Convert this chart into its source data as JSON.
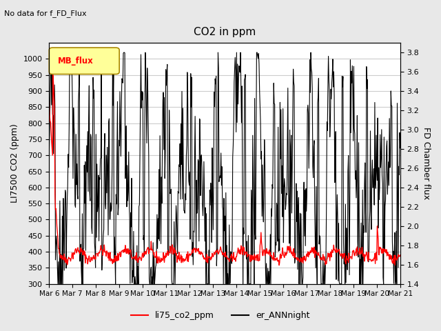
{
  "title": "CO2 in ppm",
  "top_left_text": "No data for f_FD_Flux",
  "left_ylabel": "LI7500 CO2 (ppm)",
  "right_ylabel": "FD Chamber flux",
  "left_ylim": [
    300,
    1050
  ],
  "left_yticks": [
    300,
    350,
    400,
    450,
    500,
    550,
    600,
    650,
    700,
    750,
    800,
    850,
    900,
    950,
    1000
  ],
  "right_ylim": [
    1.4,
    3.9
  ],
  "right_yticks": [
    1.4,
    1.6,
    1.8,
    2.0,
    2.2,
    2.4,
    2.6,
    2.8,
    3.0,
    3.2,
    3.4,
    3.6,
    3.8
  ],
  "xlabel_ticks": [
    "Mar 6",
    "Mar 7",
    "Mar 8",
    "Mar 9",
    "Mar 10",
    "Mar 11",
    "Mar 12",
    "Mar 13",
    "Mar 14",
    "Mar 15",
    "Mar 16",
    "Mar 17",
    "Mar 18",
    "Mar 19",
    "Mar 20",
    "Mar 21"
  ],
  "legend_items": [
    {
      "label": "li75_co2_ppm",
      "color": "red",
      "lw": 1.5
    },
    {
      "label": "er_ANNnight",
      "color": "black",
      "lw": 1.5
    }
  ],
  "legend_box_label": "MB_flux",
  "legend_box_color": "#ffff99",
  "legend_box_edge": "#aa8800",
  "background_color": "#e8e8e8",
  "plot_bg_color": "#ffffff",
  "grid_color": "#cccccc"
}
